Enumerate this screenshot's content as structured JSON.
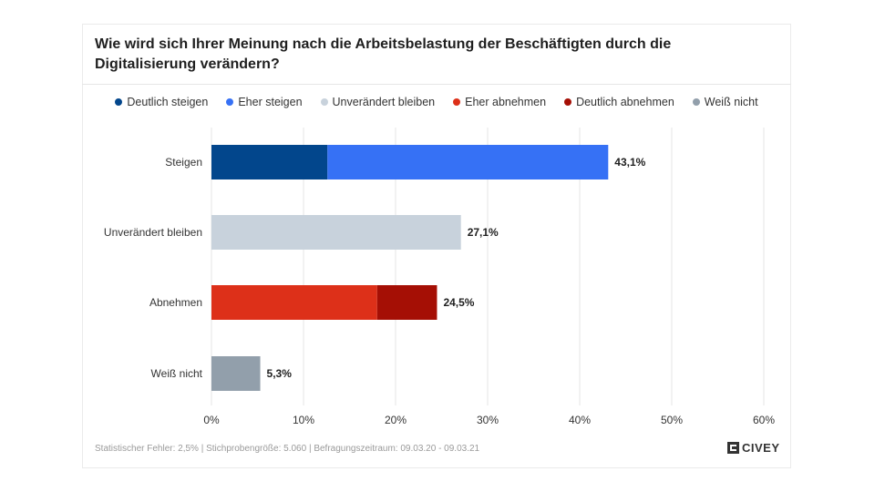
{
  "title": "Wie wird sich Ihrer Meinung nach die Arbeitsbelastung der Beschäftigten durch die Digitalisierung verändern?",
  "legend": [
    {
      "label": "Deutlich steigen",
      "color": "#02468c"
    },
    {
      "label": "Eher steigen",
      "color": "#3671f5"
    },
    {
      "label": "Unverändert bleiben",
      "color": "#c8d2dc"
    },
    {
      "label": "Eher abnehmen",
      "color": "#dd3019"
    },
    {
      "label": "Deutlich abnehmen",
      "color": "#a50f05"
    },
    {
      "label": "Weiß nicht",
      "color": "#929fab"
    }
  ],
  "chart_data": {
    "type": "bar",
    "orientation": "horizontal",
    "stacked": true,
    "categories": [
      "Steigen",
      "Unverändert bleiben",
      "Abnehmen",
      "Weiß nicht"
    ],
    "segments": [
      [
        {
          "legend": "Deutlich steigen",
          "value": 12.6
        },
        {
          "legend": "Eher steigen",
          "value": 30.5
        }
      ],
      [
        {
          "legend": "Unverändert bleiben",
          "value": 27.1
        }
      ],
      [
        {
          "legend": "Eher abnehmen",
          "value": 18.0
        },
        {
          "legend": "Deutlich abnehmen",
          "value": 6.5
        }
      ],
      [
        {
          "legend": "Weiß nicht",
          "value": 5.3
        }
      ]
    ],
    "totals": [
      43.1,
      27.1,
      24.5,
      5.3
    ],
    "total_labels": [
      "43,1%",
      "27,1%",
      "24,5%",
      "5,3%"
    ],
    "xlim": [
      0,
      60
    ],
    "xticks": [
      0,
      10,
      20,
      30,
      40,
      50,
      60
    ],
    "xtick_labels": [
      "0%",
      "10%",
      "20%",
      "30%",
      "40%",
      "50%",
      "60%"
    ],
    "grid": true,
    "legend_position": "top"
  },
  "footer": {
    "note": "Statistischer Fehler: 2,5% | Stichprobengröße: 5.060 | Befragungszeitraum: 09.03.20 - 09.03.21",
    "brand": "CIVEY"
  }
}
